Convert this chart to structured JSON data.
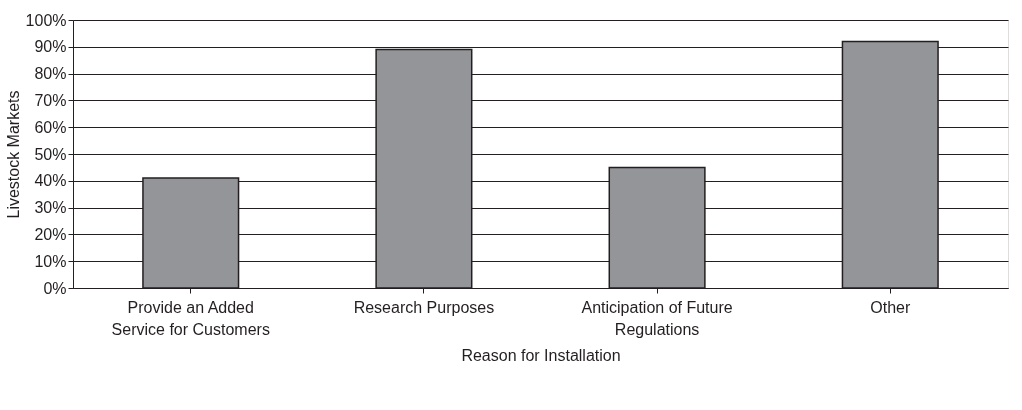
{
  "chart_data": {
    "type": "bar",
    "xlabel": "Reason for Installation",
    "ylabel": "Livestock Markets",
    "categories": [
      "Provide an Added Service for Customers",
      "Research Purposes",
      "Anticipation of Future Regulations",
      "Other"
    ],
    "values": [
      41,
      89,
      45,
      92
    ],
    "color": "#939598",
    "ylim": [
      0,
      100
    ],
    "yticks": [
      {
        "value": 0,
        "label": "0%"
      },
      {
        "value": 10,
        "label": "10%"
      },
      {
        "value": 20,
        "label": "20%"
      },
      {
        "value": 30,
        "label": "30%"
      },
      {
        "value": 40,
        "label": "40%"
      },
      {
        "value": 50,
        "label": "50%"
      },
      {
        "value": 60,
        "label": "60%"
      },
      {
        "value": 70,
        "label": "70%"
      },
      {
        "value": 80,
        "label": "80%"
      },
      {
        "value": 90,
        "label": "90%"
      },
      {
        "value": 100,
        "label": "100%"
      }
    ],
    "grid": "y"
  }
}
